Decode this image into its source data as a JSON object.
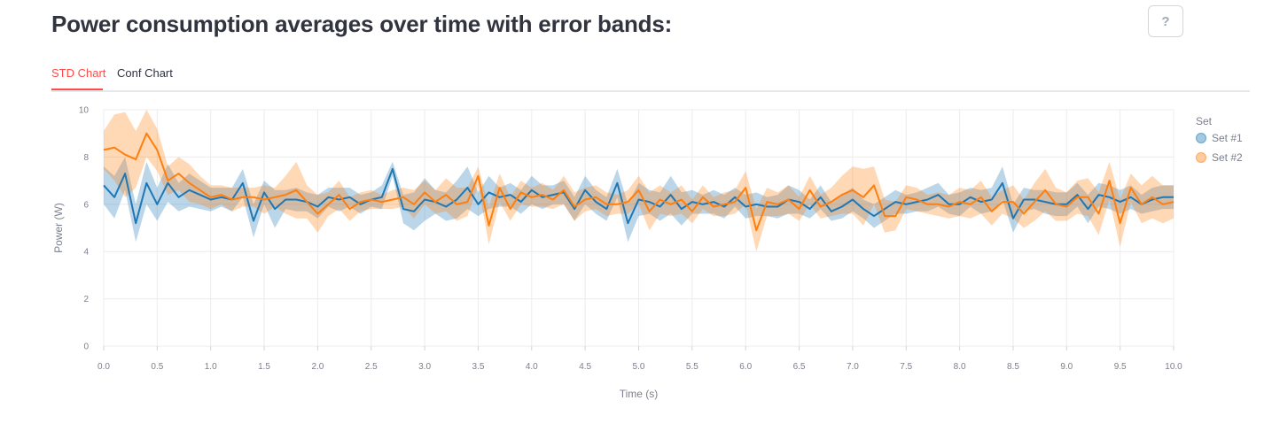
{
  "header": {
    "title": "Power consumption averages over time with error bands:",
    "help_label": "?"
  },
  "tabs": [
    {
      "label": "STD Chart",
      "active": true
    },
    {
      "label": "Conf Chart",
      "active": false
    }
  ],
  "colors": {
    "accent": "#ff4b4b",
    "series1": "#1f77b4",
    "series2": "#ff7f0e"
  },
  "chart_data": {
    "type": "line",
    "xlabel": "Time (s)",
    "ylabel": "Power (W)",
    "xlim": [
      0,
      10
    ],
    "ylim": [
      0,
      10
    ],
    "x_ticks": [
      "0.0",
      "0.5",
      "1.0",
      "1.5",
      "2.0",
      "2.5",
      "3.0",
      "3.5",
      "4.0",
      "4.5",
      "5.0",
      "5.5",
      "6.0",
      "6.5",
      "7.0",
      "7.5",
      "8.0",
      "8.5",
      "9.0",
      "9.5",
      "10.0"
    ],
    "y_ticks": [
      "0",
      "2",
      "4",
      "6",
      "8",
      "10"
    ],
    "grid": true,
    "legend": {
      "title": "Set",
      "placement": "right"
    },
    "x": [
      0,
      0.1,
      0.2,
      0.3,
      0.4,
      0.5,
      0.6,
      0.7,
      0.8,
      0.9,
      1.0,
      1.1,
      1.2,
      1.3,
      1.4,
      1.5,
      1.6,
      1.7,
      1.8,
      1.9,
      2.0,
      2.1,
      2.2,
      2.3,
      2.4,
      2.5,
      2.6,
      2.7,
      2.8,
      2.9,
      3.0,
      3.1,
      3.2,
      3.3,
      3.4,
      3.5,
      3.6,
      3.7,
      3.8,
      3.9,
      4.0,
      4.1,
      4.2,
      4.3,
      4.4,
      4.5,
      4.6,
      4.7,
      4.8,
      4.9,
      5.0,
      5.1,
      5.2,
      5.3,
      5.4,
      5.5,
      5.6,
      5.7,
      5.8,
      5.9,
      6.0,
      6.1,
      6.2,
      6.3,
      6.4,
      6.5,
      6.6,
      6.7,
      6.8,
      6.9,
      7.0,
      7.1,
      7.2,
      7.3,
      7.4,
      7.5,
      7.6,
      7.7,
      7.8,
      7.9,
      8.0,
      8.1,
      8.2,
      8.3,
      8.4,
      8.5,
      8.6,
      8.7,
      8.8,
      8.9,
      9.0,
      9.1,
      9.2,
      9.3,
      9.4,
      9.5,
      9.6,
      9.7,
      9.8,
      9.9,
      10.0
    ],
    "series": [
      {
        "name": "Set #1",
        "values": [
          6.8,
          6.3,
          7.3,
          5.2,
          6.9,
          6.0,
          6.9,
          6.3,
          6.6,
          6.4,
          6.2,
          6.3,
          6.2,
          6.9,
          5.3,
          6.5,
          5.8,
          6.2,
          6.2,
          6.1,
          5.9,
          6.3,
          6.2,
          6.3,
          6.0,
          6.2,
          6.3,
          7.5,
          5.8,
          5.7,
          6.2,
          6.1,
          5.9,
          6.2,
          6.7,
          6.0,
          6.5,
          6.3,
          6.4,
          6.1,
          6.6,
          6.3,
          6.4,
          6.5,
          5.8,
          6.6,
          6.1,
          5.8,
          6.9,
          5.2,
          6.2,
          6.1,
          5.9,
          6.4,
          5.8,
          6.1,
          6.0,
          6.1,
          5.9,
          6.3,
          5.9,
          6.0,
          5.9,
          5.9,
          6.2,
          6.1,
          5.8,
          6.3,
          5.7,
          5.9,
          6.2,
          5.8,
          5.5,
          5.8,
          6.1,
          6.0,
          6.1,
          6.2,
          6.4,
          6.0,
          6.0,
          6.3,
          6.1,
          6.2,
          6.9,
          5.4,
          6.2,
          6.2,
          6.1,
          6.0,
          6.0,
          6.4,
          5.8,
          6.4,
          6.3,
          6.1,
          6.3,
          6.0,
          6.2,
          6.3,
          6.3
        ],
        "std": [
          0.8,
          0.9,
          0.7,
          0.8,
          0.9,
          0.7,
          0.8,
          0.6,
          0.7,
          0.6,
          0.5,
          0.4,
          0.5,
          0.6,
          0.7,
          0.5,
          0.8,
          0.4,
          0.5,
          0.4,
          0.5,
          0.4,
          0.5,
          0.4,
          0.4,
          0.3,
          0.5,
          0.3,
          0.6,
          0.8,
          0.9,
          0.5,
          0.6,
          0.8,
          0.9,
          0.5,
          0.7,
          0.4,
          0.5,
          0.5,
          0.6,
          0.5,
          0.4,
          0.5,
          0.5,
          0.6,
          0.5,
          0.5,
          0.6,
          0.8,
          0.7,
          0.5,
          0.6,
          0.8,
          0.7,
          0.5,
          0.4,
          0.5,
          0.5,
          0.4,
          0.5,
          0.5,
          0.4,
          0.5,
          0.6,
          0.5,
          0.4,
          0.5,
          0.4,
          0.5,
          0.5,
          0.4,
          0.5,
          0.5,
          0.5,
          0.4,
          0.4,
          0.5,
          0.5,
          0.4,
          0.5,
          0.4,
          0.5,
          0.5,
          0.7,
          0.6,
          0.5,
          0.4,
          0.5,
          0.5,
          0.5,
          0.5,
          0.6,
          0.5,
          0.5,
          0.5,
          0.5,
          0.4,
          0.5,
          0.5,
          0.5
        ]
      },
      {
        "name": "Set #2",
        "values": [
          8.3,
          8.4,
          8.1,
          7.9,
          9.0,
          8.3,
          7.0,
          7.3,
          6.9,
          6.6,
          6.3,
          6.4,
          6.2,
          6.3,
          6.3,
          6.2,
          6.3,
          6.4,
          6.6,
          6.1,
          5.6,
          6.0,
          6.4,
          5.8,
          6.1,
          6.2,
          6.1,
          6.2,
          6.3,
          6.0,
          6.5,
          6.1,
          6.4,
          6.0,
          6.1,
          7.2,
          5.1,
          6.7,
          5.8,
          6.5,
          6.3,
          6.4,
          6.2,
          6.6,
          5.9,
          6.2,
          6.3,
          6.0,
          6.0,
          6.1,
          6.6,
          5.7,
          6.2,
          6.0,
          6.2,
          5.7,
          6.3,
          5.9,
          6.0,
          6.1,
          6.7,
          4.9,
          6.1,
          6.0,
          6.2,
          5.8,
          6.6,
          5.9,
          6.1,
          6.4,
          6.6,
          6.3,
          6.8,
          5.5,
          5.5,
          6.3,
          6.2,
          6.0,
          6.0,
          5.9,
          6.1,
          6.0,
          6.3,
          5.7,
          6.1,
          6.1,
          5.6,
          6.1,
          6.6,
          6.0,
          5.9,
          6.3,
          6.3,
          5.6,
          7.0,
          5.2,
          6.7,
          6.0,
          6.3,
          6.0,
          6.1
        ],
        "std": [
          0.8,
          1.4,
          1.8,
          1.2,
          1.0,
          0.9,
          0.6,
          0.7,
          0.8,
          0.6,
          0.5,
          0.4,
          0.5,
          0.4,
          0.4,
          0.6,
          0.4,
          0.8,
          1.2,
          0.7,
          0.8,
          0.5,
          0.6,
          0.5,
          0.4,
          0.4,
          0.3,
          0.4,
          0.4,
          0.6,
          0.5,
          0.5,
          0.7,
          0.7,
          0.6,
          0.4,
          0.8,
          0.6,
          0.5,
          0.5,
          0.4,
          0.5,
          0.4,
          0.6,
          0.6,
          0.5,
          0.5,
          0.5,
          0.4,
          0.5,
          0.6,
          0.8,
          0.6,
          0.5,
          0.6,
          0.5,
          0.5,
          0.4,
          0.5,
          0.5,
          0.7,
          0.9,
          0.6,
          0.5,
          0.6,
          0.5,
          0.6,
          0.5,
          0.6,
          0.8,
          1.0,
          1.2,
          0.8,
          0.7,
          0.6,
          0.5,
          0.5,
          0.4,
          0.5,
          0.5,
          0.6,
          0.6,
          0.7,
          0.6,
          0.5,
          0.7,
          0.6,
          0.8,
          0.9,
          0.7,
          0.6,
          0.7,
          0.8,
          0.9,
          0.8,
          1.0,
          0.6,
          0.8,
          0.9,
          0.8,
          0.7
        ]
      }
    ]
  }
}
